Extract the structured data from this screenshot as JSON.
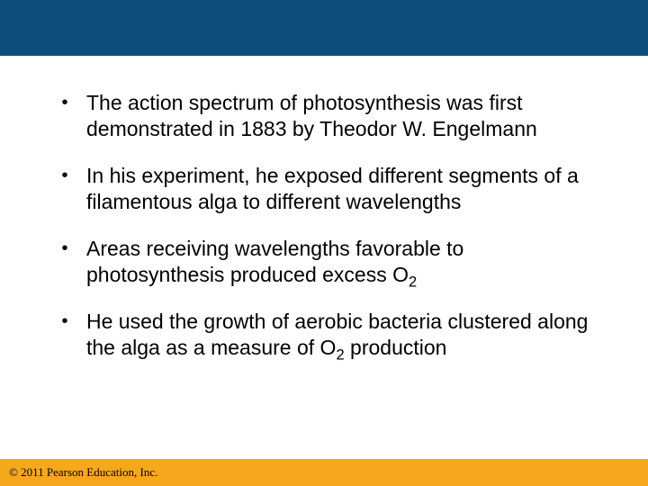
{
  "colors": {
    "header_bg": "#0d4f7a",
    "footer_bg": "#f6a81c",
    "text": "#000000",
    "page_bg": "#ffffff"
  },
  "bullets": [
    {
      "html": "The action spectrum of photosynthesis was first demonstrated in 1883 by Theodor W. Engelmann"
    },
    {
      "html": "In his experiment, he exposed different segments of a filamentous alga to different wavelengths"
    },
    {
      "html": "Areas receiving wavelengths favorable to photosynthesis produced excess O<span class=\"sub\">2</span>"
    },
    {
      "html": "He used the growth of aerobic bacteria clustered along the alga as a measure of O<span class=\"sub\">2</span> production"
    }
  ],
  "footer": {
    "copyright": "© 2011 Pearson Education, Inc."
  }
}
